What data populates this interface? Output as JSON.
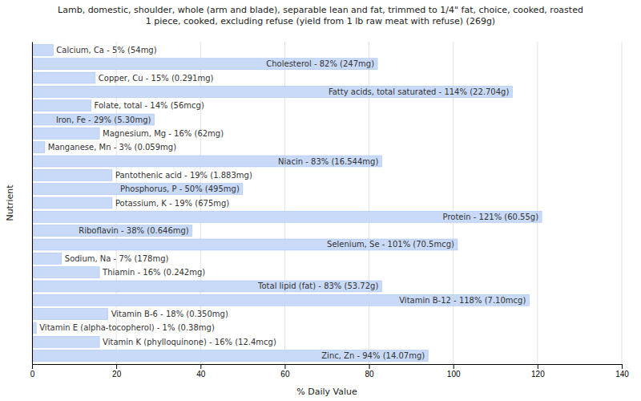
{
  "chart_data": {
    "type": "bar",
    "orientation": "horizontal",
    "title": "Lamb, domestic, shoulder, whole (arm and blade), separable lean and fat, trimmed to 1/4\" fat, choice, cooked, roasted\n1 piece, cooked, excluding refuse (yield from 1 lb raw meat with refuse) (269g)",
    "x_label": "% Daily Value",
    "y_label": "Nutrient",
    "categories": [
      "Calcium, Ca - 5% (54mg)",
      "Cholesterol - 82% (247mg)",
      "Copper, Cu - 15% (0.291mg)",
      "Fatty acids, total saturated - 114% (22.704g)",
      "Folate, total - 14% (56mcg)",
      "Iron, Fe - 29% (5.30mg)",
      "Magnesium, Mg - 16% (62mg)",
      "Manganese, Mn - 3% (0.059mg)",
      "Niacin - 83% (16.544mg)",
      "Pantothenic acid - 19% (1.883mg)",
      "Phosphorus, P - 50% (495mg)",
      "Potassium, K - 19% (675mg)",
      "Protein - 121% (60.55g)",
      "Riboflavin - 38% (0.646mg)",
      "Selenium, Se - 101% (70.5mcg)",
      "Sodium, Na - 7% (178mg)",
      "Thiamin - 16% (0.242mg)",
      "Total lipid (fat) - 83% (53.72g)",
      "Vitamin B-12 - 118% (7.10mcg)",
      "Vitamin B-6 - 18% (0.350mg)",
      "Vitamin E (alpha-tocopherol) - 1% (0.38mg)",
      "Vitamin K (phylloquinone) - 16% (12.4mcg)",
      "Zinc, Zn - 94% (14.07mg)"
    ],
    "values": [
      5,
      82,
      15,
      114,
      14,
      29,
      16,
      3,
      83,
      19,
      50,
      19,
      121,
      38,
      101,
      7,
      16,
      83,
      118,
      18,
      1,
      16,
      94
    ],
    "color": "#c9daf8",
    "xlim": [
      0,
      140
    ],
    "xticks": [
      0,
      20,
      40,
      60,
      80,
      100,
      120,
      140
    ],
    "grid": true
  }
}
